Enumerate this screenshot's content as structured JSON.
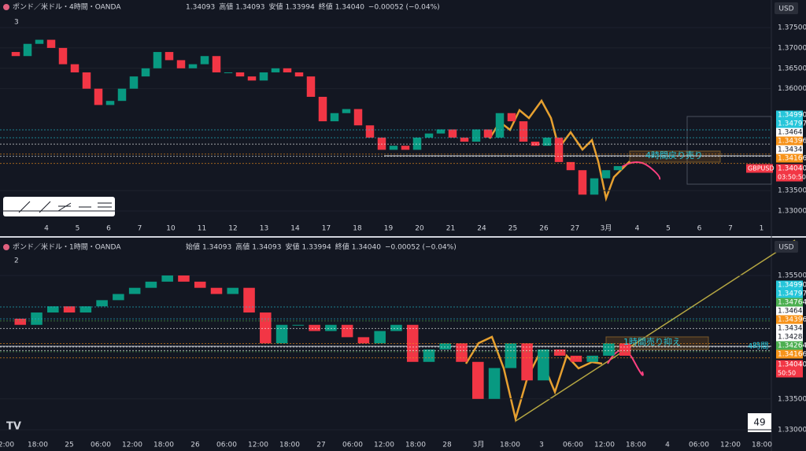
{
  "panes": [
    {
      "symbol": "ポンド／米ドル・4時間・OANDA",
      "ohlc": [
        {
          "value": "1.34093"
        },
        {
          "label": "高値",
          "value": "1.34093"
        },
        {
          "label": "安値",
          "value": "1.33994"
        },
        {
          "label": "終値",
          "value": "1.34040"
        }
      ],
      "change": "−0.00052 (−0.04%)",
      "indicators": "3",
      "axis": [
        "1.37500",
        "1.37000",
        "1.36500",
        "1.36000",
        "1.33500",
        "1.33000"
      ],
      "price_tags": [
        {
          "text": "1.34990",
          "color": "#26c6da"
        },
        {
          "text": "1.34797",
          "color": "#26c6da"
        },
        {
          "text": "1.34640",
          "color": "#ffffff"
        },
        {
          "text": "1.34396",
          "color": "#f7931a"
        },
        {
          "text": "1.34341",
          "color": "#ffffff"
        },
        {
          "text": "1.34166",
          "color": "#f7931a"
        }
      ],
      "last": {
        "symbol": "GBPUSD",
        "text": "1.34040",
        "countdown": "03:50:50"
      },
      "time_labels": [
        "4",
        "5",
        "6",
        "7",
        "10",
        "11",
        "12",
        "13",
        "14",
        "17",
        "18",
        "19",
        "20",
        "21",
        "24",
        "25",
        "26",
        "27",
        "3月",
        "4",
        "5",
        "6",
        "7",
        "1"
      ],
      "annotation": "4時間戻り売り",
      "closes": [
        1.369,
        1.368,
        1.371,
        1.372,
        1.37,
        1.366,
        1.364,
        1.36,
        1.356,
        1.357,
        1.36,
        1.363,
        1.365,
        1.369,
        1.367,
        1.365,
        1.366,
        1.368,
        1.364,
        1.364,
        1.363,
        1.362,
        1.364,
        1.365,
        1.364,
        1.363,
        1.358,
        1.352,
        1.354,
        1.355,
        1.351,
        1.348,
        1.345,
        1.346,
        1.345,
        1.348,
        1.349,
        1.35,
        1.348,
        1.347,
        1.35,
        1.348,
        1.354,
        1.352,
        1.347,
        1.346,
        1.348,
        1.342,
        1.34,
        1.334,
        1.338,
        1.34,
        1.341
      ]
    },
    {
      "symbol": "ポンド／米ドル・1時間・OANDA",
      "ohlc": [
        {
          "label": "始値",
          "value": "1.34093"
        },
        {
          "label": "高値",
          "value": "1.34093"
        },
        {
          "label": "安値",
          "value": "1.33994"
        },
        {
          "label": "終値",
          "value": "1.34040"
        }
      ],
      "change": "−0.00052 (−0.04%)",
      "indicators": "2",
      "axis": [
        "1.35500",
        "1.33500",
        "1.33000"
      ],
      "price_tags": [
        {
          "text": "1.34990",
          "color": "#26c6da"
        },
        {
          "text": "1.34797",
          "color": "#26c6da"
        },
        {
          "text": "1.34764",
          "color": "#4caf50"
        },
        {
          "text": "1.34640",
          "color": "#ffffff"
        },
        {
          "text": "1.34396",
          "color": "#f7931a"
        },
        {
          "text": "1.34341",
          "color": "#ffffff"
        },
        {
          "text": "1.34284",
          "color": "#ffffff"
        },
        {
          "text": "1.34264",
          "color": "#4caf50"
        },
        {
          "text": "1.34166",
          "color": "#f7931a"
        }
      ],
      "last": {
        "text": "1.34040",
        "countdown": "50:50"
      },
      "time_labels": [
        "2:00",
        "18:00",
        "25",
        "06:00",
        "12:00",
        "18:00",
        "26",
        "06:00",
        "12:00",
        "18:00",
        "27",
        "06:00",
        "12:00",
        "18:00",
        "28",
        "3月",
        "18:00",
        "3",
        "06:00",
        "12:00",
        "18:00",
        "4",
        "06:00",
        "12:00",
        "18:00"
      ],
      "annotation": "1時間売り抑え",
      "annotation2": "4時間",
      "closes": [
        1.348,
        1.347,
        1.349,
        1.35,
        1.349,
        1.35,
        1.351,
        1.352,
        1.353,
        1.354,
        1.355,
        1.354,
        1.353,
        1.352,
        1.353,
        1.349,
        1.344,
        1.347,
        1.347,
        1.346,
        1.347,
        1.345,
        1.344,
        1.346,
        1.347,
        1.341,
        1.343,
        1.344,
        1.341,
        1.335,
        1.34,
        1.344,
        1.338,
        1.343,
        1.342,
        1.341,
        1.342,
        1.344,
        1.342
      ]
    }
  ],
  "currency": "USD",
  "badge": "49"
}
